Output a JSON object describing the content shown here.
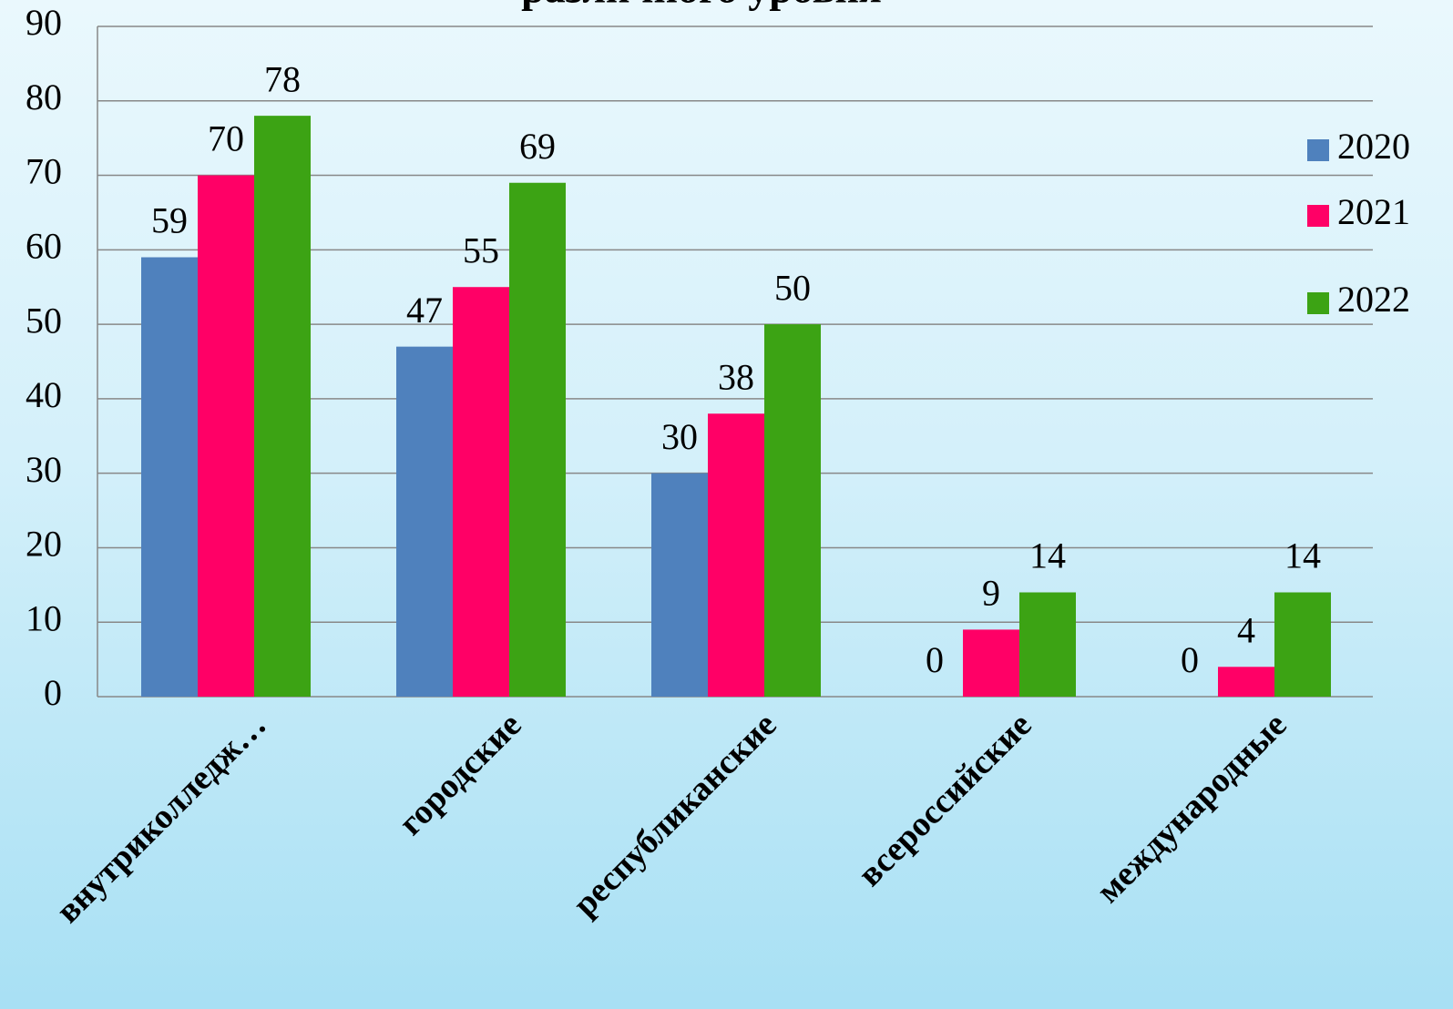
{
  "chart_data": {
    "type": "bar",
    "title": "различного уровня",
    "categories": [
      "внутриколледж…",
      "городские",
      "республиканские",
      "всероссийские",
      "международные"
    ],
    "series": [
      {
        "name": "2020",
        "color": "#4f81bd",
        "values": [
          59,
          47,
          30,
          0,
          0
        ]
      },
      {
        "name": "2021",
        "color": "#ff0066",
        "values": [
          70,
          55,
          38,
          9,
          4
        ]
      },
      {
        "name": "2022",
        "color": "#3ca314",
        "values": [
          78,
          69,
          50,
          14,
          14
        ]
      }
    ],
    "ylim": [
      0,
      90
    ],
    "yticks": [
      0,
      10,
      20,
      30,
      40,
      50,
      60,
      70,
      80,
      90
    ],
    "grid": true,
    "legend": "right"
  }
}
